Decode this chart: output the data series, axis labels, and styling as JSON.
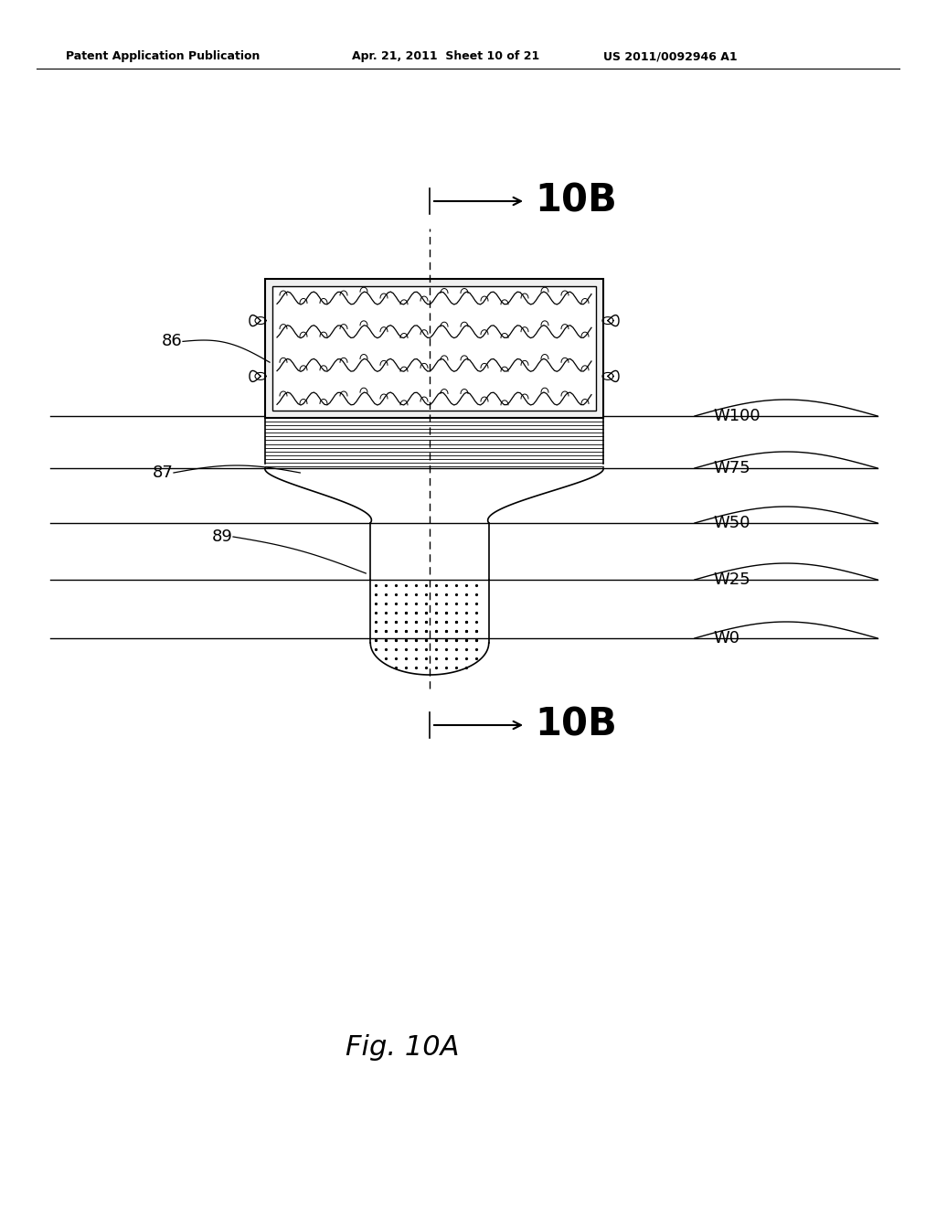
{
  "header_left": "Patent Application Publication",
  "header_mid": "Apr. 21, 2011  Sheet 10 of 21",
  "header_right": "US 2011/0092946 A1",
  "figure_label": "Fig. 10A",
  "label_10B": "10B",
  "label_86": "86",
  "label_87": "87",
  "label_89": "89",
  "w_labels": [
    "W100",
    "W75",
    "W50",
    "W25",
    "W0"
  ],
  "bg_color": "#ffffff",
  "line_color": "#000000"
}
